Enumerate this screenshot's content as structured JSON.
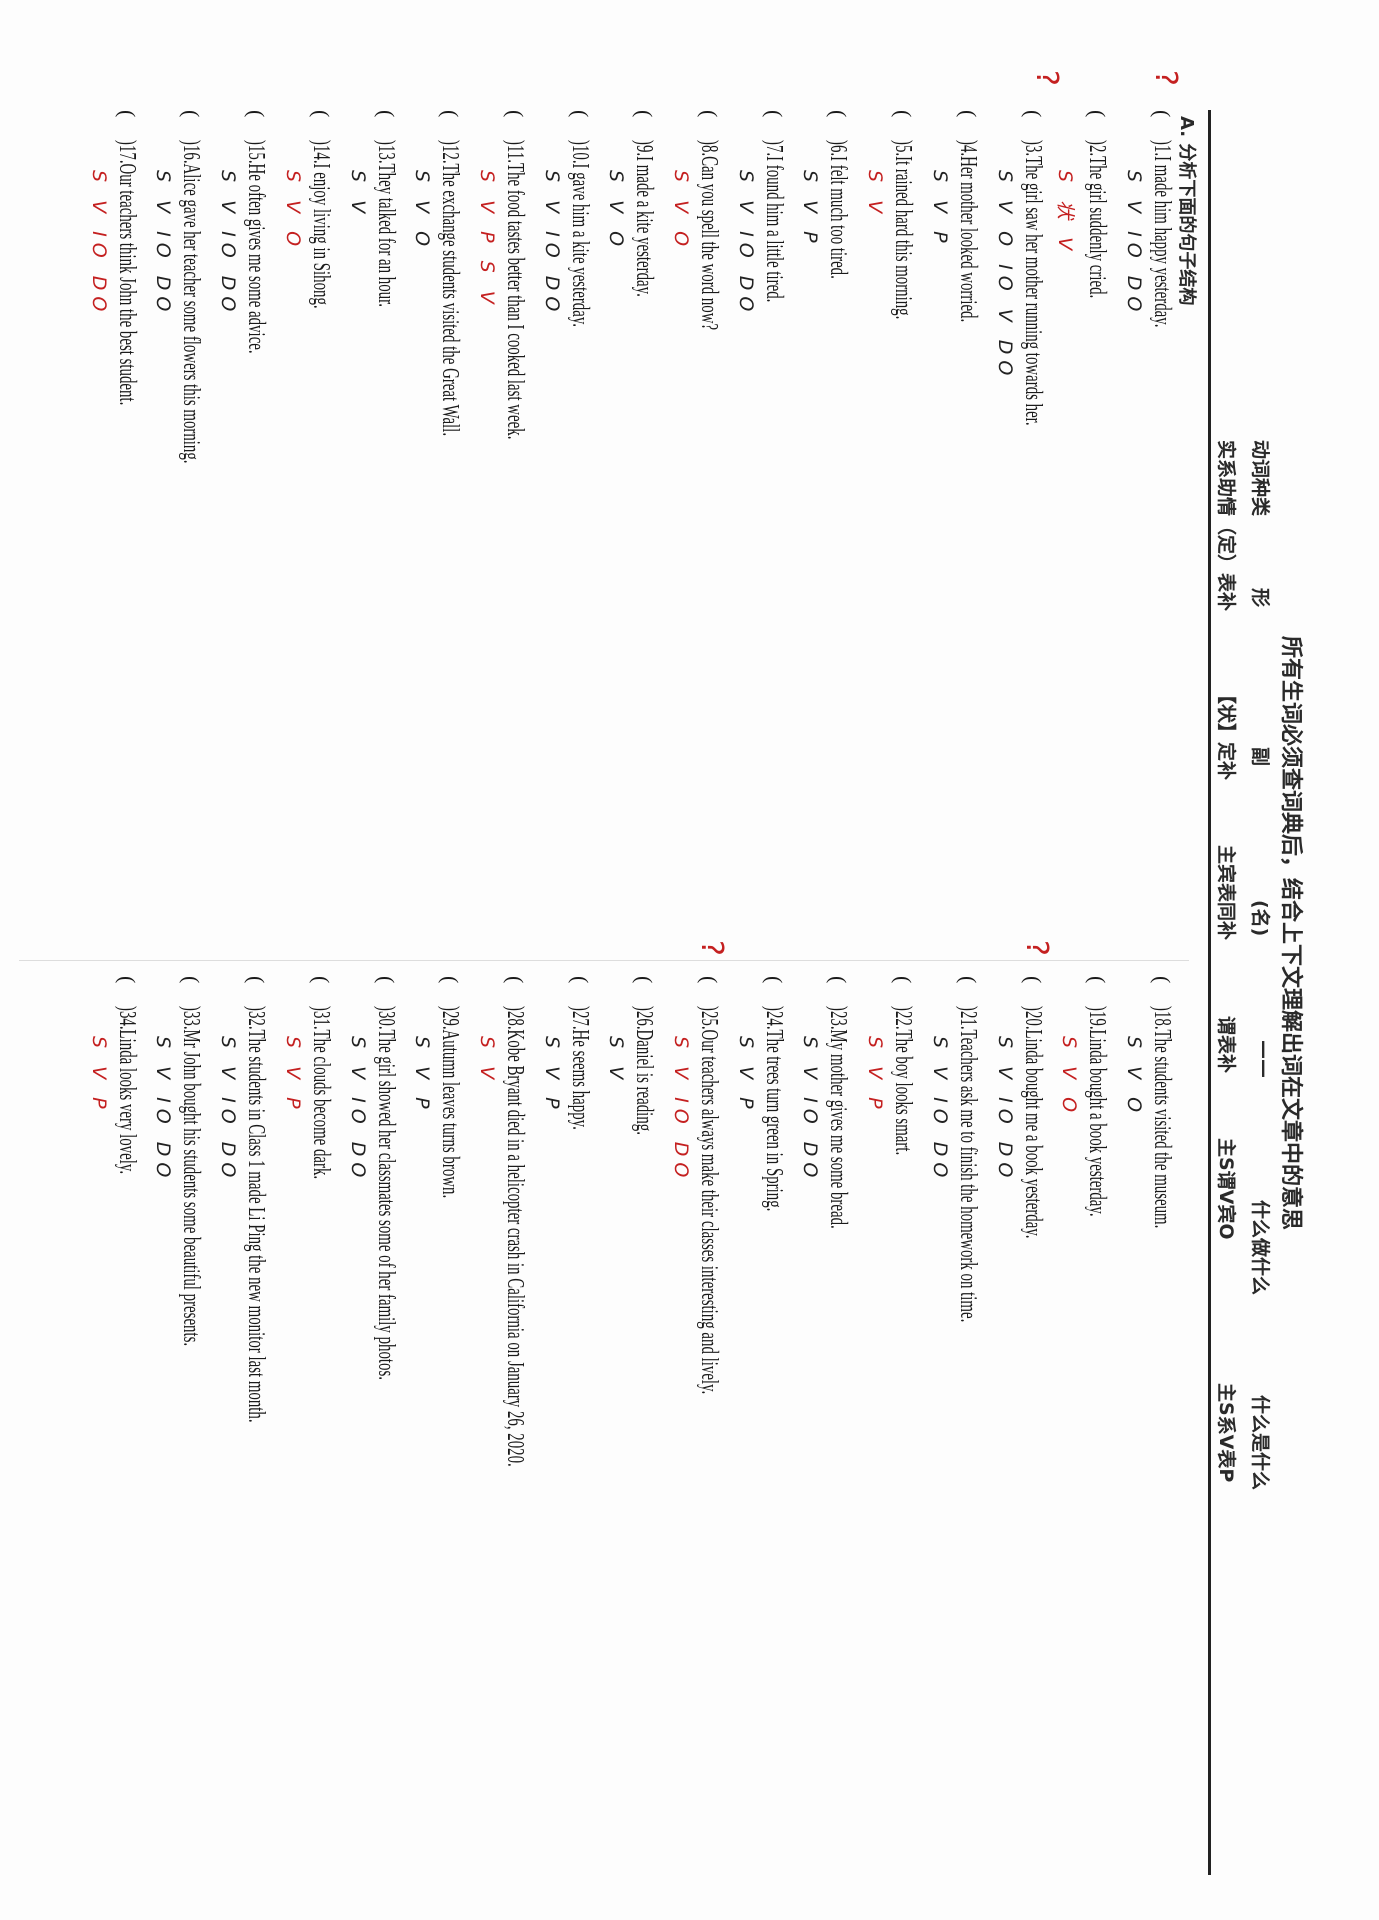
{
  "header": {
    "title": "所有生词必须查词典后，结合上下文理解出词在文章中的意思",
    "row1": [
      "动词种类",
      "形",
      "副",
      "(名)",
      "——",
      "什么做什么",
      "什么是什么"
    ],
    "row2": [
      "实系助情（定）表补",
      "【状】定补",
      "主宾表同补",
      "谓表补",
      "主S谓V宾O",
      "主S系V表P"
    ]
  },
  "section_label": "A. 分析下面的句子结构",
  "colors": {
    "ink": "#1a1a1a",
    "red_pen": "#c42020"
  },
  "left_items": [
    {
      "paren": "(",
      "text": ")1.I made him happy yesterday.",
      "ann": "S V IO DO"
    },
    {
      "paren": "(",
      "text": ")2.The girl suddenly cried.",
      "ann": "S 状 V"
    },
    {
      "paren": "(",
      "text": ")3.The girl saw her mother running towards her.",
      "ann": "S V O IO V DO"
    },
    {
      "paren": "(",
      "text": ")4.Her mother looked worried.",
      "ann": "S V P"
    },
    {
      "paren": "(",
      "text": ")5.It rained hard this morning.",
      "ann": "S V"
    },
    {
      "paren": "(",
      "text": ")6.I felt much too tired.",
      "ann": "S V P"
    },
    {
      "paren": "(",
      "text": ")7.I found him a little tired.",
      "ann": "S V IO DO"
    },
    {
      "paren": "(",
      "text": ")8.Can you spell the word now?",
      "ann": "S V O"
    },
    {
      "paren": "(",
      "text": ")9.I made a kite yesterday.",
      "ann": "S V O"
    },
    {
      "paren": "(",
      "text": ")10.I gave him a kite yesterday.",
      "ann": "S V IO DO"
    },
    {
      "paren": "(",
      "text": ")11.The food tastes better than I cooked last week.",
      "ann": "S V P S V"
    },
    {
      "paren": "(",
      "text": ")12.The exchange students visited the Great Wall.",
      "ann": "S V O"
    },
    {
      "paren": "(",
      "text": ")13.They talked for an hour.",
      "ann": "S V"
    },
    {
      "paren": "(",
      "text": ")14.I enjoy living in Sihong.",
      "ann": "S V O"
    },
    {
      "paren": "(",
      "text": ")15.He often gives me some advice.",
      "ann": "S V IO DO"
    },
    {
      "paren": "(",
      "text": ")16.Alice gave her teacher some flowers this morning.",
      "ann": "S V IO DO"
    },
    {
      "paren": "(",
      "text": ")17.Our teachers think John the best student.",
      "ann": "S V IO DO"
    }
  ],
  "right_items": [
    {
      "paren": "(",
      "text": ")18.The students visited the museum.",
      "ann": "S V O"
    },
    {
      "paren": "(",
      "text": ")19.Linda bought a book yesterday.",
      "ann": "S V O"
    },
    {
      "paren": "(",
      "text": ")20.Linda bought me a book yesterday.",
      "ann": "S V IO DO"
    },
    {
      "paren": "(",
      "text": ")21.Teachers ask me to finish the homework on time.",
      "ann": "S V IO DO"
    },
    {
      "paren": "(",
      "text": ")22.The boy looks smart.",
      "ann": "S V P"
    },
    {
      "paren": "(",
      "text": ")23.My mother gives me some bread.",
      "ann": "S V IO DO"
    },
    {
      "paren": "(",
      "text": ")24.The trees turn green in Spring.",
      "ann": "S V P"
    },
    {
      "paren": "(",
      "text": ")25.Our teachers always make their classes interesting and lively.",
      "ann": "S V IO DO"
    },
    {
      "paren": "(",
      "text": ")26.Daniel is reading.",
      "ann": "S V"
    },
    {
      "paren": "(",
      "text": ")27.He seems happy.",
      "ann": "S V P"
    },
    {
      "paren": "(",
      "text": ")28.Kobe Bryant died in a helicopter crash in California on January 26, 2020.",
      "ann": "S V"
    },
    {
      "paren": "(",
      "text": ")29.Autumn leaves turns brown.",
      "ann": "S V P"
    },
    {
      "paren": "(",
      "text": ")30.The girl showed her classmates some of her family photos.",
      "ann": "S V IO DO"
    },
    {
      "paren": "(",
      "text": ")31.The clouds become dark.",
      "ann": "S V P"
    },
    {
      "paren": "(",
      "text": ")32.The students in Class 1 made Li Ping the new monitor last month.",
      "ann": "S V IO DO"
    },
    {
      "paren": "(",
      "text": ")33.Mr John bought his students some beautiful presents.",
      "ann": "S V IO DO"
    },
    {
      "paren": "(",
      "text": ")34.Linda looks very lovely.",
      "ann": "S V P"
    }
  ],
  "margin_marks": [
    "?",
    "?",
    "?",
    "?"
  ]
}
